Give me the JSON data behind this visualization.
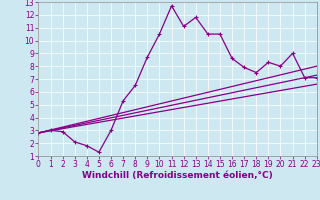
{
  "xlabel": "Windchill (Refroidissement éolien,°C)",
  "xlim": [
    0,
    23
  ],
  "ylim": [
    1,
    13
  ],
  "xticks": [
    0,
    1,
    2,
    3,
    4,
    5,
    6,
    7,
    8,
    9,
    10,
    11,
    12,
    13,
    14,
    15,
    16,
    17,
    18,
    19,
    20,
    21,
    22,
    23
  ],
  "yticks": [
    1,
    2,
    3,
    4,
    5,
    6,
    7,
    8,
    9,
    10,
    11,
    12,
    13
  ],
  "background_color": "#cde8f0",
  "line_color": "#880088",
  "line1_x": [
    0,
    1,
    2,
    3,
    4,
    5,
    6,
    7,
    8,
    9,
    10,
    11,
    12,
    13,
    14,
    15,
    16,
    17,
    18,
    19,
    20,
    21,
    22,
    23
  ],
  "line1_y": [
    2.8,
    3.0,
    2.9,
    2.1,
    1.8,
    1.3,
    3.0,
    5.3,
    6.5,
    8.7,
    10.5,
    12.7,
    11.1,
    11.8,
    10.5,
    10.5,
    8.6,
    7.9,
    7.5,
    8.3,
    8.0,
    9.0,
    7.1,
    7.1
  ],
  "line2_x": [
    0,
    23
  ],
  "line2_y": [
    2.8,
    7.3
  ],
  "line3_x": [
    0,
    23
  ],
  "line3_y": [
    2.8,
    6.6
  ],
  "line4_x": [
    0,
    23
  ],
  "line4_y": [
    2.8,
    8.0
  ],
  "tick_fontsize": 5.5,
  "xlabel_fontsize": 6.5
}
